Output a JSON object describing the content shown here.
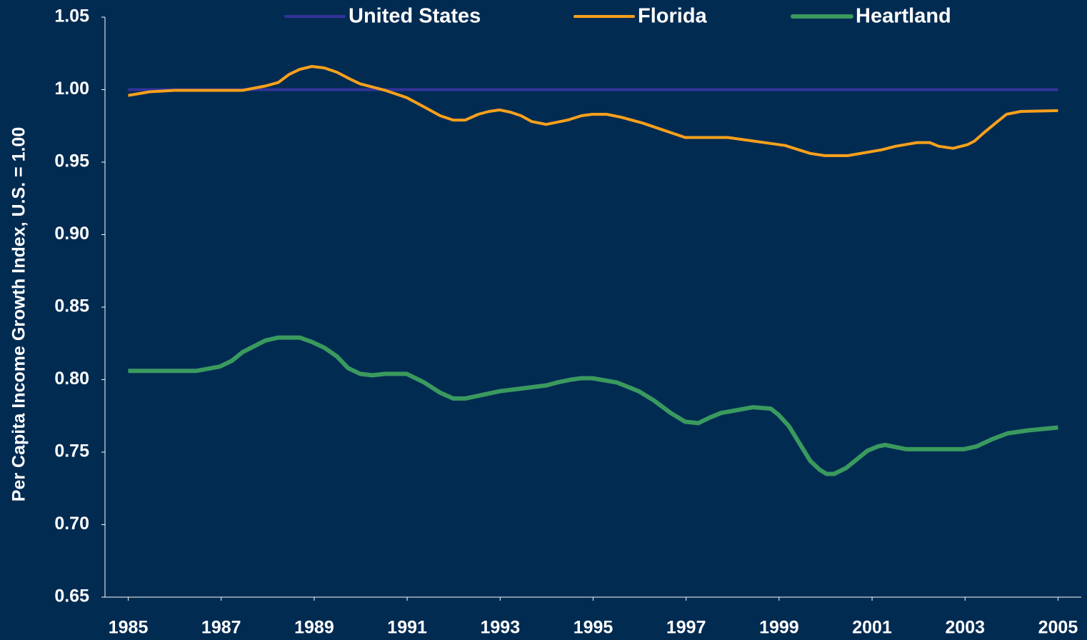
{
  "chart_data": {
    "type": "line",
    "y_label": "Per Capita Income Growth Index, U.S. = 1.00",
    "xlim": [
      1984.5,
      2005.5
    ],
    "xticks": [
      1985,
      1987,
      1989,
      1991,
      1993,
      1995,
      1997,
      1999,
      2001,
      2003,
      2005
    ],
    "ylim": [
      0.65,
      1.05
    ],
    "yticks": [
      0.65,
      {
        "value": 0.7,
        "label": "0.70"
      },
      0.75,
      {
        "value": 0.8,
        "label": "0.80"
      },
      0.85,
      {
        "value": 0.9,
        "label": "0.90"
      },
      0.95,
      {
        "value": 1,
        "label": "1.00"
      },
      1.05
    ],
    "legend": "top",
    "series": [
      {
        "name": "United States",
        "color": "#34339a",
        "x": [
          1985,
          2005
        ],
        "values": [
          1,
          1
        ]
      },
      {
        "name": "Florida",
        "color": "#f9a11b",
        "x": [
          1985.0,
          1985.46,
          1986.0,
          1987.46,
          1987.95,
          1988.23,
          1988.46,
          1988.69,
          1988.95,
          1989.22,
          1989.49,
          1989.76,
          1989.99,
          1990.53,
          1990.99,
          1991.37,
          1991.71,
          1991.99,
          1992.25,
          1992.53,
          1992.76,
          1992.99,
          1993.22,
          1993.45,
          1993.68,
          1993.99,
          1994.45,
          1994.75,
          1994.98,
          1995.29,
          1995.6,
          1996.06,
          1996.52,
          1996.98,
          1997.9,
          1999.13,
          1999.67,
          1999.98,
          2000.48,
          2001.21,
          2001.51,
          2001.97,
          2002.24,
          2002.43,
          2002.74,
          2003.05,
          2003.2,
          2003.43,
          2003.66,
          2003.89,
          2004.2,
          2005.0
        ],
        "values": [
          0.996,
          0.9985,
          0.9995,
          0.9995,
          1.0025,
          1.005,
          1.0105,
          1.014,
          1.016,
          1.015,
          1.012,
          1.0075,
          1.004,
          0.9995,
          0.9945,
          0.988,
          0.982,
          0.979,
          0.979,
          0.983,
          0.985,
          0.986,
          0.9845,
          0.982,
          0.978,
          0.976,
          0.979,
          0.982,
          0.983,
          0.983,
          0.981,
          0.977,
          0.972,
          0.967,
          0.967,
          0.9615,
          0.956,
          0.9545,
          0.9545,
          0.9585,
          0.961,
          0.9635,
          0.9635,
          0.961,
          0.9595,
          0.962,
          0.9645,
          0.971,
          0.977,
          0.983,
          0.985,
          0.9855
        ]
      },
      {
        "name": "Heartland",
        "color": "#3a9a5e",
        "x": [
          1985.0,
          1986.46,
          1986.97,
          1987.23,
          1987.46,
          1987.95,
          1988.23,
          1988.69,
          1988.95,
          1989.22,
          1989.49,
          1989.73,
          1989.99,
          1990.25,
          1990.53,
          1990.99,
          1991.37,
          1991.71,
          1991.99,
          1992.25,
          1992.99,
          1993.99,
          1994.22,
          1994.52,
          1994.75,
          1994.98,
          1995.52,
          1995.98,
          1996.29,
          1996.67,
          1996.98,
          1997.26,
          1997.52,
          1997.75,
          1998.44,
          1998.82,
          1998.98,
          1999.21,
          1999.44,
          1999.67,
          1999.87,
          2000.02,
          2000.18,
          2000.44,
          2000.67,
          2000.9,
          2001.13,
          2001.28,
          2001.74,
          2002.97,
          2003.25,
          2003.59,
          2003.92,
          2004.36,
          2005.0
        ],
        "values": [
          0.806,
          0.806,
          0.809,
          0.813,
          0.819,
          0.827,
          0.829,
          0.829,
          0.826,
          0.822,
          0.816,
          0.808,
          0.804,
          0.803,
          0.804,
          0.804,
          0.798,
          0.791,
          0.787,
          0.787,
          0.792,
          0.796,
          0.798,
          0.8,
          0.801,
          0.801,
          0.798,
          0.792,
          0.786,
          0.777,
          0.771,
          0.77,
          0.774,
          0.777,
          0.781,
          0.78,
          0.776,
          0.768,
          0.756,
          0.744,
          0.738,
          0.735,
          0.735,
          0.739,
          0.745,
          0.751,
          0.754,
          0.755,
          0.752,
          0.752,
          0.754,
          0.759,
          0.763,
          0.765,
          0.767
        ]
      }
    ]
  }
}
